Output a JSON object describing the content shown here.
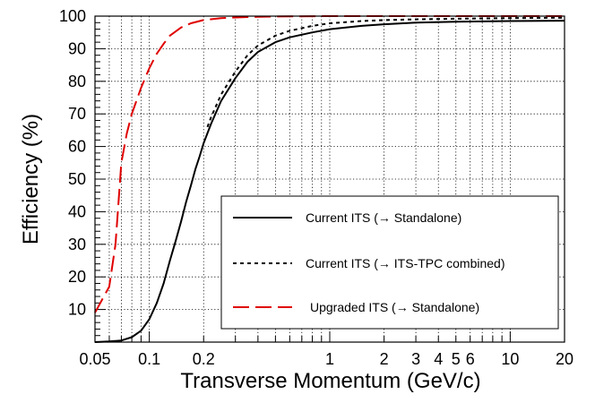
{
  "chart_data": {
    "type": "line",
    "xlabel": "Transverse Momentum (GeV/c)",
    "ylabel": "Efficiency (%)",
    "x_scale": "log",
    "xlim": [
      0.05,
      20
    ],
    "ylim": [
      0,
      100
    ],
    "grid": true,
    "legend_position": "center-right",
    "x_tick_labels": [
      "0.05",
      "0.1",
      "0.2",
      "1",
      "2",
      "3",
      "4",
      "5",
      "6",
      "10",
      "20"
    ],
    "y_tick_labels": [
      "10",
      "20",
      "30",
      "40",
      "50",
      "60",
      "70",
      "80",
      "90",
      "100"
    ],
    "series": [
      {
        "name": "Current ITS (→ Standalone)",
        "color": "#000000",
        "style": "solid",
        "x": [
          0.05,
          0.06,
          0.07,
          0.08,
          0.09,
          0.1,
          0.11,
          0.12,
          0.13,
          0.14,
          0.15,
          0.16,
          0.17,
          0.18,
          0.19,
          0.2,
          0.22,
          0.25,
          0.3,
          0.35,
          0.4,
          0.5,
          0.6,
          0.8,
          1,
          1.5,
          2,
          3,
          5,
          10,
          20
        ],
        "y": [
          0,
          0.2,
          0.5,
          1.5,
          3.5,
          7,
          12,
          18,
          25,
          31,
          37,
          43,
          48,
          53,
          57,
          61,
          67,
          74,
          81,
          86,
          89,
          92,
          93.5,
          95,
          96,
          97,
          97.5,
          98,
          98.3,
          98.5,
          98.6
        ]
      },
      {
        "name": "Current ITS (→ ITS-TPC combined)",
        "color": "#000000",
        "style": "dashed",
        "x": [
          0.21,
          0.22,
          0.25,
          0.3,
          0.35,
          0.4,
          0.5,
          0.6,
          0.8,
          1,
          1.5,
          2,
          3,
          5,
          10,
          20
        ],
        "y": [
          66,
          69,
          76,
          83,
          88,
          91,
          94,
          95.5,
          97,
          97.8,
          98.5,
          98.8,
          99,
          99.2,
          99.4,
          99.5
        ]
      },
      {
        "name": "Upgraded ITS (→ Standalone)",
        "color": "#e00000",
        "style": "long-dashed",
        "x": [
          0.05,
          0.06,
          0.065,
          0.07,
          0.075,
          0.08,
          0.09,
          0.1,
          0.11,
          0.12,
          0.13,
          0.15,
          0.17,
          0.2,
          0.25,
          0.3,
          0.4,
          0.5,
          1,
          2,
          5,
          10,
          20
        ],
        "y": [
          9,
          17,
          30,
          55,
          64,
          70,
          78,
          84,
          88.5,
          91.5,
          94,
          96.5,
          97.8,
          98.8,
          99.4,
          99.6,
          99.8,
          99.9,
          100,
          100,
          100,
          100,
          100
        ]
      }
    ]
  }
}
